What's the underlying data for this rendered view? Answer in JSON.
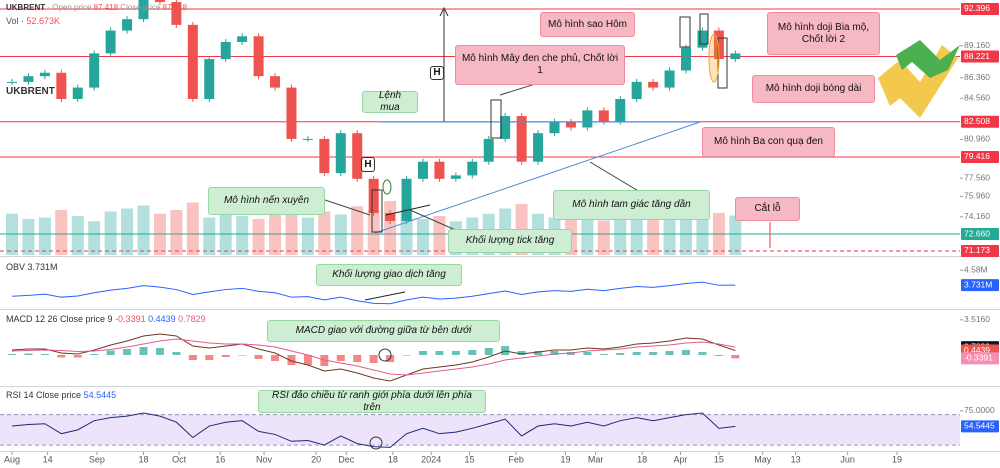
{
  "header": {
    "symbol": "UKBRENT",
    "open_label": "Open price",
    "open": 87.418,
    "close_label": "Close price",
    "close": 87.418,
    "volume_title": "Vol",
    "volume_label": "52.673K"
  },
  "chart_data": [
    {
      "type": "candlestick",
      "title": "UKBRENT",
      "x": [
        0,
        6,
        12,
        18,
        24,
        30,
        36,
        42,
        48,
        54,
        60,
        66,
        72,
        78,
        84,
        90,
        96,
        102,
        108,
        114,
        120,
        126,
        132,
        138,
        144,
        150,
        156,
        162,
        168,
        174,
        180,
        186,
        192,
        198,
        204,
        210,
        216,
        222,
        228,
        234,
        240,
        246,
        252,
        258,
        264
      ],
      "values": [
        86.0,
        86.5,
        86.8,
        84.5,
        85.5,
        88.5,
        90.5,
        91.5,
        93.5,
        93.0,
        91.0,
        84.5,
        88.0,
        89.5,
        90.0,
        86.5,
        85.5,
        81.0,
        81.0,
        78.0,
        81.5,
        77.5,
        74.5,
        73.8,
        77.5,
        79.0,
        77.5,
        77.8,
        79.0,
        81.0,
        83.0,
        79.0,
        81.5,
        82.5,
        82.0,
        83.5,
        82.5,
        84.5,
        86.0,
        85.5,
        87.0,
        89.0,
        90.5,
        88.0,
        88.5
      ],
      "volume": [
        55,
        48,
        50,
        60,
        52,
        45,
        58,
        62,
        66,
        55,
        60,
        70,
        50,
        58,
        52,
        48,
        55,
        62,
        50,
        58,
        54,
        65,
        60,
        72,
        58,
        48,
        52,
        45,
        50,
        55,
        62,
        68,
        55,
        50,
        48,
        52,
        46,
        50,
        55,
        52,
        58,
        60,
        68,
        56,
        52.673
      ],
      "up_color": "#26a69a",
      "down_color": "#ef5350",
      "xlim": [
        -4.38,
        346
      ],
      "ylim": [
        70.82,
        93.18
      ],
      "vlim": [
        0,
        80
      ],
      "yticks": [
        {
          "value": 89.16,
          "label": "89.160"
        },
        {
          "value": 86.36,
          "label": "86.360"
        },
        {
          "value": 84.56,
          "label": "84.560"
        },
        {
          "value": 80.96,
          "label": "80.960"
        },
        {
          "value": 77.56,
          "label": "77.560"
        },
        {
          "value": 75.96,
          "label": "75.960"
        },
        {
          "value": 74.16,
          "label": "74.160"
        }
      ],
      "levels": [
        {
          "value": 92.396,
          "color": "#f23645"
        },
        {
          "value": 88.221,
          "color": "#f23645"
        },
        {
          "value": 82.508,
          "color": "#f23645"
        },
        {
          "value": 79.416,
          "color": "#f23645"
        },
        {
          "value": 72.66,
          "label": "72.660",
          "color": "#22ab94"
        },
        {
          "value": 71.173,
          "color": "#f23645",
          "dashed": true
        }
      ],
      "annotations": [
        {
          "text": "Mô hình sao Hôm",
          "style": "sell"
        },
        {
          "text": "Mô hình doji Bia mộ, Chốt lời 2",
          "style": "sell"
        },
        {
          "text": "Mô hình Mây đen che phủ, Chốt lời 1",
          "style": "sell"
        },
        {
          "text": "Mô hình doji bóng dài",
          "style": "sell"
        },
        {
          "text": "Mô hình Ba con quạ đen",
          "style": "sell"
        },
        {
          "text": "Cắt lỗ",
          "style": "sell"
        },
        {
          "text": "Lệnh mua",
          "style": "buy"
        },
        {
          "text": "Mô hình nến xuyên",
          "style": "buy"
        },
        {
          "text": "Khối lượng tick tăng",
          "style": "buy"
        },
        {
          "text": "Mô hình tam giác tăng dần",
          "style": "buy"
        },
        {
          "text": "H",
          "style": "mark"
        },
        {
          "text": "H",
          "style": "mark"
        }
      ]
    },
    {
      "type": "line",
      "title": "OBV 3.731M",
      "color": "#2962ff",
      "values": [
        3.1,
        3.15,
        3.22,
        3.05,
        3.12,
        3.3,
        3.45,
        3.55,
        3.7,
        3.62,
        3.48,
        3.2,
        3.35,
        3.48,
        3.55,
        3.38,
        3.3,
        3.05,
        3.08,
        2.9,
        3.05,
        2.85,
        2.7,
        2.68,
        2.9,
        3.05,
        2.95,
        3.0,
        3.1,
        3.25,
        3.4,
        3.2,
        3.35,
        3.42,
        3.38,
        3.5,
        3.42,
        3.55,
        3.65,
        3.6,
        3.7,
        3.82,
        3.9,
        3.72,
        3.731
      ],
      "ylim": [
        2.44,
        5.26
      ],
      "yticks": [
        {
          "value": 4.58,
          "label": "4.58M"
        }
      ],
      "tags": [
        {
          "value": 3.731,
          "label": "3.731M",
          "color": "#2962ff"
        }
      ],
      "annotations": [
        {
          "text": "Khối lượng giao dịch tăng",
          "style": "buy"
        }
      ]
    },
    {
      "type": "macd",
      "title": "MACD 12 26 Close price 9",
      "series": [
        {
          "name": "MACD",
          "color": "#6b3a1f",
          "values": [
            0.5,
            0.6,
            0.6,
            0.2,
            0.1,
            0.5,
            1.0,
            1.4,
            1.9,
            2.1,
            1.9,
            0.9,
            0.7,
            0.9,
            1.1,
            0.6,
            0.2,
            -0.6,
            -1.0,
            -1.6,
            -1.4,
            -1.8,
            -2.3,
            -2.6,
            -2.0,
            -1.4,
            -1.2,
            -1.0,
            -0.7,
            -0.2,
            0.4,
            0.1,
            0.3,
            0.5,
            0.5,
            0.7,
            0.6,
            0.8,
            1.1,
            1.2,
            1.4,
            1.7,
            1.6,
            1.0,
            0.4439
          ]
        },
        {
          "name": "Signal",
          "color": "#e35b8f",
          "values": [
            0.4,
            0.45,
            0.5,
            0.45,
            0.35,
            0.4,
            0.55,
            0.8,
            1.1,
            1.4,
            1.6,
            1.4,
            1.2,
            1.1,
            1.1,
            1.0,
            0.8,
            0.4,
            0.0,
            -0.5,
            -0.8,
            -1.1,
            -1.5,
            -1.9,
            -2.0,
            -1.8,
            -1.6,
            -1.4,
            -1.2,
            -0.9,
            -0.5,
            -0.3,
            -0.1,
            0.1,
            0.2,
            0.4,
            0.5,
            0.6,
            0.8,
            0.9,
            1.0,
            1.2,
            1.3,
            1.1,
            0.7829
          ]
        }
      ],
      "histogram": [
        0.1,
        0.15,
        0.1,
        -0.25,
        -0.25,
        0.1,
        0.45,
        0.6,
        0.8,
        0.7,
        0.3,
        -0.5,
        -0.5,
        -0.2,
        0.0,
        -0.4,
        -0.6,
        -1.0,
        -1.0,
        -1.1,
        -0.6,
        -0.7,
        -0.8,
        -0.7,
        0.0,
        0.4,
        0.4,
        0.4,
        0.5,
        0.7,
        0.9,
        0.4,
        0.4,
        0.4,
        0.3,
        0.3,
        0.1,
        0.2,
        0.3,
        0.3,
        0.4,
        0.5,
        0.3,
        -0.1,
        -0.3391
      ],
      "hist_up_color": "#26a69a",
      "hist_down_color": "#ef5350",
      "ylim": [
        -3.0,
        4.5
      ],
      "yticks": [
        {
          "value": 3.516,
          "label": "3.5160"
        }
      ],
      "tags": [
        {
          "value": 0.7829,
          "color": "#131722"
        },
        {
          "value": 0.4439,
          "color": "#ef5350"
        },
        {
          "value": -0.3391,
          "color": "#f48fb1"
        }
      ],
      "annotations": [
        {
          "text": "MACD giao với đường giữa từ bên dưới",
          "style": "buy"
        }
      ]
    },
    {
      "type": "line",
      "title": "RSI 14 Close price",
      "color": "#1e2a78",
      "values": [
        55,
        57,
        58,
        45,
        50,
        62,
        66,
        68,
        72,
        68,
        60,
        40,
        55,
        60,
        62,
        48,
        44,
        35,
        36,
        30,
        42,
        32,
        28,
        27,
        45,
        52,
        45,
        47,
        52,
        58,
        64,
        42,
        55,
        58,
        55,
        60,
        55,
        62,
        66,
        62,
        66,
        70,
        72,
        52,
        54.5445
      ],
      "ylim": [
        22.3,
        104.8
      ],
      "band": [
        30,
        70
      ],
      "band_color": "#ede3fb",
      "yticks": [
        {
          "value": 75,
          "label": "75.0000"
        }
      ],
      "tags": [
        {
          "value": 54.5445,
          "color": "#2962ff"
        }
      ],
      "xticks": [
        {
          "value": 0,
          "label": "Aug"
        },
        {
          "value": 13,
          "label": "14"
        },
        {
          "value": 31,
          "label": "Sep"
        },
        {
          "value": 48,
          "label": "18"
        },
        {
          "value": 61,
          "label": "Oct"
        },
        {
          "value": 76,
          "label": "16"
        },
        {
          "value": 92,
          "label": "Nov"
        },
        {
          "value": 111,
          "label": "20"
        },
        {
          "value": 122,
          "label": "Dec"
        },
        {
          "value": 139,
          "label": "18"
        },
        {
          "value": 153,
          "label": "2024"
        },
        {
          "value": 167,
          "label": "15"
        },
        {
          "value": 184,
          "label": "Feb"
        },
        {
          "value": 202,
          "label": "19"
        },
        {
          "value": 213,
          "label": "Mar"
        },
        {
          "value": 230,
          "label": "18"
        },
        {
          "value": 244,
          "label": "Apr"
        },
        {
          "value": 258,
          "label": "15"
        },
        {
          "value": 274,
          "label": "May"
        },
        {
          "value": 286,
          "label": "13"
        },
        {
          "value": 305,
          "label": "Jun"
        },
        {
          "value": 323,
          "label": "19"
        }
      ],
      "annotations": [
        {
          "text": "RSI đảo chiều từ ranh giới phía dưới lên phía trên",
          "style": "buy"
        }
      ]
    }
  ]
}
